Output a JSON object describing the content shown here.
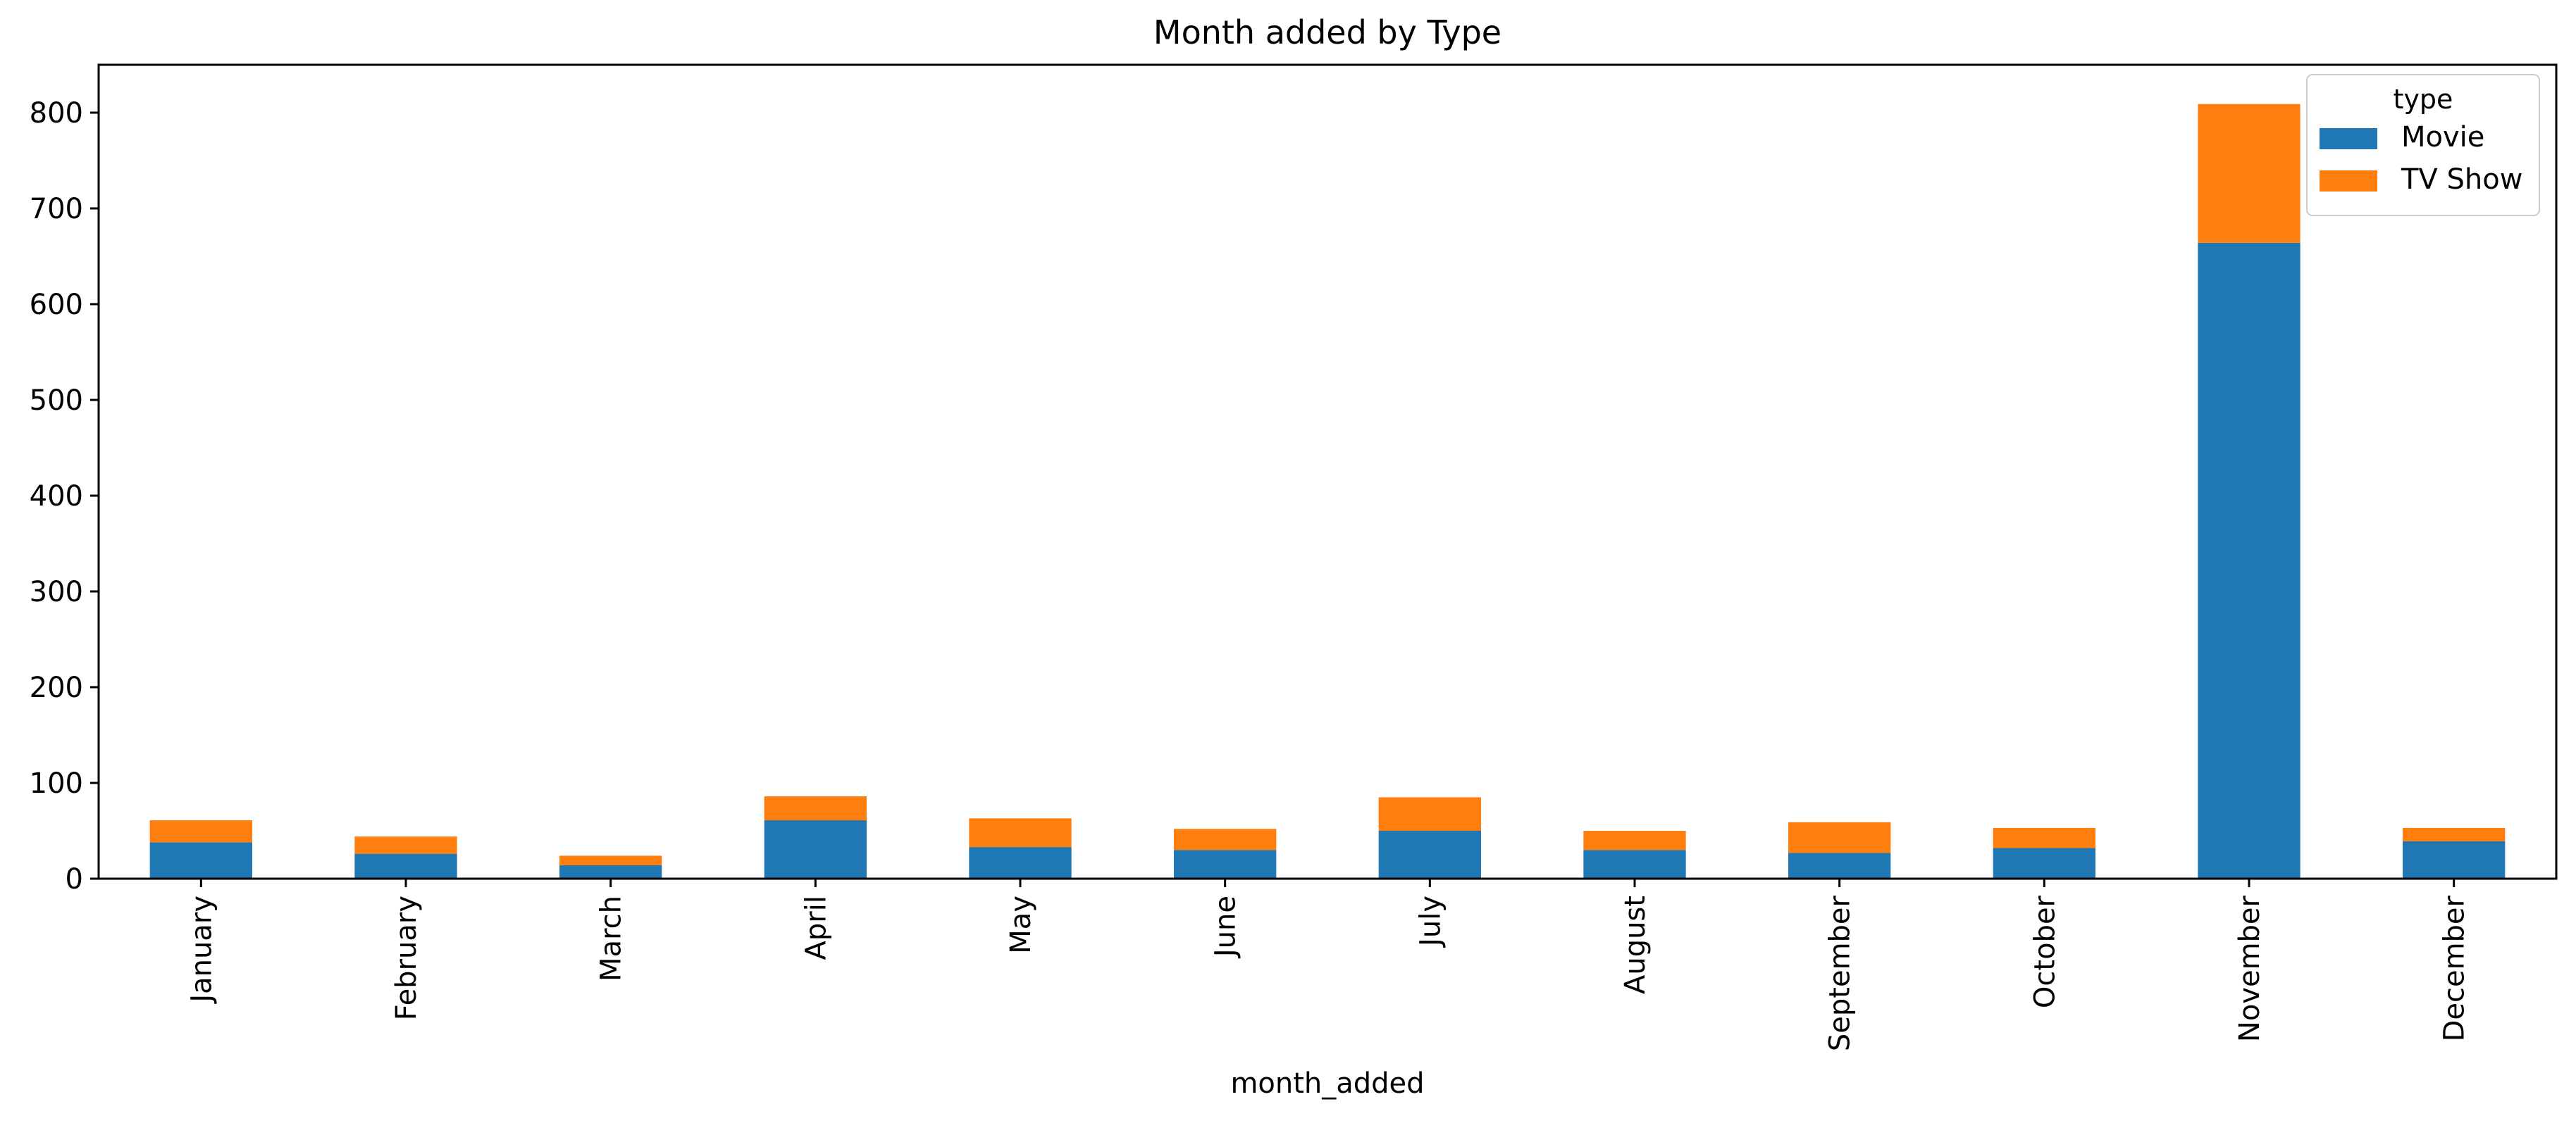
{
  "chart_data": {
    "type": "bar",
    "stacked": true,
    "title": "Month added by Type",
    "xlabel": "month_added",
    "ylabel": "",
    "ylim": [
      0,
      850
    ],
    "yticks": [
      0,
      100,
      200,
      300,
      400,
      500,
      600,
      700,
      800
    ],
    "grid": false,
    "categories": [
      "January",
      "February",
      "March",
      "April",
      "May",
      "June",
      "July",
      "August",
      "September",
      "October",
      "November",
      "December"
    ],
    "series": [
      {
        "name": "Movie",
        "color": "#1f77b4",
        "values": [
          38,
          26,
          14,
          61,
          33,
          30,
          50,
          30,
          27,
          32,
          664,
          39
        ]
      },
      {
        "name": "TV Show",
        "color": "#ff7f0e",
        "values": [
          23,
          18,
          10,
          25,
          30,
          22,
          35,
          20,
          32,
          21,
          145,
          14
        ]
      }
    ],
    "legend": {
      "title": "type",
      "position": "top-right"
    }
  }
}
